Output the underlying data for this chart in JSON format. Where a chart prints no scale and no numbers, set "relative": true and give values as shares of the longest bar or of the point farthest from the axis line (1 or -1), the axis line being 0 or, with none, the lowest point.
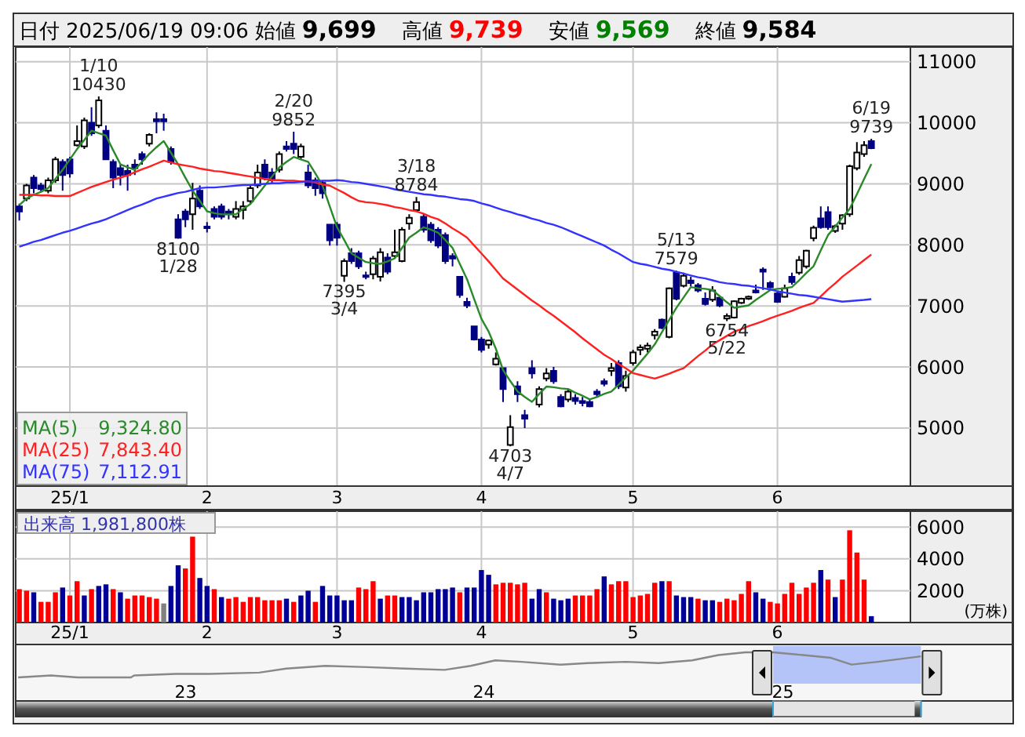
{
  "chart_data": [
    {
      "type": "candlestick",
      "title": "日付 2025/06/19 09:06 始値 9,699 高値 9,739 安値 9,569 終値 9,584",
      "categories": [
        null,
        null,
        null,
        null,
        null,
        null,
        null,
        "25/1",
        null,
        null,
        null,
        null,
        null,
        null,
        null,
        null,
        null,
        null,
        null,
        null,
        null,
        null,
        null,
        null,
        null,
        null,
        "2",
        null,
        null,
        null,
        null,
        null,
        null,
        null,
        null,
        null,
        null,
        null,
        null,
        null,
        null,
        null,
        null,
        null,
        "3",
        null,
        null,
        null,
        null,
        null,
        null,
        null,
        null,
        null,
        null,
        null,
        null,
        null,
        null,
        null,
        null,
        null,
        null,
        null,
        "4",
        null,
        null,
        null,
        null,
        null,
        null,
        null,
        null,
        null,
        null,
        null,
        null,
        null,
        null,
        null,
        null,
        null,
        null,
        null,
        null,
        "5",
        null,
        null,
        null,
        null,
        null,
        null,
        null,
        null,
        null,
        null,
        null,
        null,
        null,
        null,
        null,
        null,
        null,
        null,
        null,
        "6",
        null,
        null,
        null,
        null,
        null,
        null,
        null,
        null,
        null,
        null,
        null,
        null,
        null
      ],
      "ohlc": [
        [
          8631,
          8674,
          8400,
          8546
        ],
        [
          8760,
          9000,
          8717,
          8973
        ],
        [
          9101,
          9144,
          8845,
          8930
        ],
        [
          8973,
          9016,
          8862,
          8913
        ],
        [
          8888,
          9101,
          8845,
          9058
        ],
        [
          9058,
          9443,
          9016,
          9400
        ],
        [
          9358,
          9400,
          8888,
          9144
        ],
        [
          9400,
          9443,
          9101,
          9170
        ],
        [
          9632,
          9956,
          9614,
          9700
        ],
        [
          9614,
          10084,
          9571,
          10041
        ],
        [
          10000,
          10255,
          9785,
          9828
        ],
        [
          9956,
          10430,
          9913,
          10366
        ],
        [
          9870,
          9956,
          9400,
          9400
        ],
        [
          9358,
          9400,
          8930,
          9101
        ],
        [
          9255,
          9315,
          8973,
          9144
        ],
        [
          9212,
          9315,
          8888,
          9144
        ],
        [
          9315,
          9400,
          9144,
          9255
        ],
        [
          9486,
          9529,
          9315,
          9400
        ],
        [
          9657,
          9828,
          9614,
          9802
        ],
        [
          10058,
          10170,
          9828,
          10025
        ],
        [
          10058,
          10148,
          9870,
          10025
        ],
        [
          9571,
          9614,
          9315,
          9358
        ],
        [
          8418,
          8503,
          8100,
          8118
        ],
        [
          8546,
          8589,
          8290,
          8418
        ],
        [
          8503,
          9016,
          8247,
          8760
        ],
        [
          8888,
          8973,
          8589,
          8631
        ],
        [
          8300,
          8375,
          8204,
          8290
        ],
        [
          8589,
          8631,
          8418,
          8460
        ],
        [
          8631,
          8674,
          8418,
          8460
        ],
        [
          8546,
          8589,
          8418,
          8503
        ],
        [
          8460,
          8717,
          8418,
          8589
        ],
        [
          8572,
          8717,
          8418,
          8631
        ],
        [
          8717,
          8973,
          8674,
          8930
        ],
        [
          8973,
          9315,
          8930,
          9187
        ],
        [
          9315,
          9400,
          9058,
          9101
        ],
        [
          9187,
          9255,
          9016,
          9058
        ],
        [
          9230,
          9529,
          9187,
          9486
        ],
        [
          9614,
          9700,
          9529,
          9571
        ],
        [
          9657,
          9852,
          9486,
          9571
        ],
        [
          9443,
          9657,
          9400,
          9614
        ],
        [
          9187,
          9315,
          8930,
          8973
        ],
        [
          9058,
          9101,
          8803,
          8930
        ],
        [
          9016,
          9058,
          8760,
          8845
        ],
        [
          8332,
          8332,
          7990,
          8076
        ],
        [
          8332,
          8375,
          7990,
          8118
        ],
        [
          7495,
          7777,
          7395,
          7734
        ],
        [
          7862,
          7947,
          7690,
          7734
        ],
        [
          7862,
          7904,
          7606,
          7649
        ],
        [
          7500,
          7563,
          7435,
          7480
        ],
        [
          7520,
          7819,
          7435,
          7777
        ],
        [
          7478,
          7947,
          7400,
          7880
        ],
        [
          7793,
          7862,
          7520,
          7563
        ],
        [
          7819,
          8247,
          7793,
          7880
        ],
        [
          7734,
          8290,
          7717,
          8247
        ],
        [
          8350,
          8503,
          8247,
          8443
        ],
        [
          8571,
          8784,
          8546,
          8700
        ],
        [
          8460,
          8503,
          8204,
          8247
        ],
        [
          8332,
          8375,
          8033,
          8076
        ],
        [
          8247,
          8290,
          7947,
          7990
        ],
        [
          8161,
          8204,
          7690,
          7734
        ],
        [
          7819,
          7862,
          7649,
          7776
        ],
        [
          7477,
          7477,
          7135,
          7178
        ],
        [
          7067,
          7135,
          6965,
          7007
        ],
        [
          6666,
          6666,
          6435,
          6452
        ],
        [
          6452,
          6494,
          6238,
          6281
        ],
        [
          6366,
          6452,
          6300,
          6435
        ],
        [
          6042,
          6238,
          6025,
          6135
        ],
        [
          5981,
          5981,
          5426,
          5640
        ],
        [
          4725,
          5213,
          4703,
          5016
        ],
        [
          5683,
          5768,
          5426,
          5555
        ],
        [
          5213,
          5298,
          5000,
          5153
        ],
        [
          5982,
          6110,
          5811,
          5896
        ],
        [
          5384,
          5683,
          5341,
          5640
        ],
        [
          5811,
          5981,
          5768,
          5896
        ],
        [
          5938,
          6000,
          5725,
          5768
        ],
        [
          5511,
          5555,
          5341,
          5358
        ],
        [
          5469,
          5640,
          5426,
          5597
        ],
        [
          5495,
          5555,
          5384,
          5443
        ],
        [
          5444,
          5512,
          5358,
          5410
        ],
        [
          5426,
          5469,
          5341,
          5358
        ],
        [
          5597,
          5640,
          5512,
          5555
        ],
        [
          5768,
          5811,
          5683,
          5725
        ],
        [
          5938,
          6067,
          5854,
          5981
        ],
        [
          6067,
          6110,
          5640,
          5683
        ],
        [
          5665,
          5939,
          5597,
          5853
        ],
        [
          6067,
          6281,
          6024,
          6238
        ],
        [
          6281,
          6366,
          6195,
          6324
        ],
        [
          6300,
          6400,
          6238,
          6350
        ],
        [
          6520,
          6622,
          6452,
          6580
        ],
        [
          6776,
          6793,
          6622,
          6640
        ],
        [
          6494,
          7306,
          6469,
          7289
        ],
        [
          7546,
          7579,
          7093,
          7118
        ],
        [
          7332,
          7546,
          7306,
          7494
        ],
        [
          7417,
          7477,
          7323,
          7375
        ],
        [
          7340,
          7375,
          7220,
          7255
        ],
        [
          7118,
          7221,
          7007,
          7033
        ],
        [
          7101,
          7323,
          7067,
          7255
        ],
        [
          7135,
          7153,
          6982,
          7007
        ],
        [
          6793,
          6879,
          6754,
          6835
        ],
        [
          6810,
          7093,
          6793,
          7076
        ],
        [
          7050,
          7135,
          7033,
          7118
        ],
        [
          7118,
          7170,
          7100,
          7150
        ],
        [
          7255,
          7350,
          7204,
          7220
        ],
        [
          7597,
          7631,
          7264,
          7562
        ],
        [
          7375,
          7409,
          7289,
          7306
        ],
        [
          7204,
          7238,
          7050,
          7067
        ],
        [
          7152,
          7350,
          7135,
          7289
        ],
        [
          7477,
          7546,
          7349,
          7392
        ],
        [
          7546,
          7819,
          7511,
          7751
        ],
        [
          7648,
          7922,
          7614,
          7905
        ],
        [
          8110,
          8315,
          8059,
          8281
        ],
        [
          8435,
          8631,
          8264,
          8290
        ],
        [
          8537,
          8631,
          8247,
          8290
        ],
        [
          8230,
          8332,
          8196,
          8307
        ],
        [
          8349,
          8503,
          8247,
          8486
        ],
        [
          8503,
          9315,
          8460,
          9290
        ],
        [
          9255,
          9682,
          9221,
          9512
        ],
        [
          9486,
          9700,
          9443,
          9631
        ],
        [
          9699,
          9739,
          9569,
          9584
        ]
      ],
      "colors": [
        "#000080",
        "#ffffff",
        "#000080",
        "#000080",
        "#ffffff",
        "#ffffff",
        "#000080",
        "#000080",
        "#ffffff",
        "#ffffff",
        "#000080",
        "#ffffff",
        "#000080",
        "#000080",
        "#000080",
        "#000080",
        "#000080",
        "#000080",
        "#ffffff",
        "#000080",
        "#000080",
        "#000080",
        "#000080",
        "#000080",
        "#ffffff",
        "#000080",
        "#000080",
        "#000080",
        "#000080",
        "#000080",
        "#ffffff",
        "#ffffff",
        "#ffffff",
        "#ffffff",
        "#000080",
        "#000080",
        "#ffffff",
        "#000080",
        "#000080",
        "#ffffff",
        "#000080",
        "#000080",
        "#000080",
        "#000080",
        "#000080",
        "#ffffff",
        "#000080",
        "#000080",
        "#000080",
        "#ffffff",
        "#ffffff",
        "#000080",
        "#ffffff",
        "#ffffff",
        "#ffffff",
        "#ffffff",
        "#000080",
        "#000080",
        "#000080",
        "#000080",
        "#000080",
        "#000080",
        "#000080",
        "#000080",
        "#000080",
        "#ffffff",
        "#ffffff",
        "#000080",
        "#ffffff",
        "#000080",
        "#000080",
        "#000080",
        "#ffffff",
        "#ffffff",
        "#000080",
        "#000080",
        "#ffffff",
        "#000080",
        "#000080",
        "#000080",
        "#000080",
        "#000080",
        "#ffffff",
        "#000080",
        "#ffffff",
        "#ffffff",
        "#ffffff",
        "#ffffff",
        "#ffffff",
        "#000080",
        "#ffffff",
        "#000080",
        "#ffffff",
        "#000080",
        "#000080",
        "#000080",
        "#ffffff",
        "#000080",
        "#ffffff",
        "#ffffff",
        "#ffffff",
        "#ffffff",
        "#000080",
        "#000080",
        "#000080",
        "#000080",
        "#ffffff",
        "#000080",
        "#ffffff",
        "#ffffff",
        "#ffffff",
        "#000080",
        "#000080",
        "#ffffff",
        "#ffffff",
        "#ffffff",
        "#ffffff",
        "#ffffff",
        "#000080"
      ],
      "value_labels": [
        null,
        null,
        null,
        null,
        null,
        null,
        null,
        null,
        null,
        null,
        null,
        "1/10\n10430",
        null,
        null,
        null,
        null,
        null,
        null,
        null,
        null,
        null,
        null,
        "8100\n1/28",
        null,
        null,
        null,
        null,
        null,
        null,
        null,
        null,
        null,
        null,
        null,
        null,
        null,
        null,
        null,
        "2/20\n9852",
        null,
        null,
        null,
        null,
        null,
        null,
        "7395\n3/4",
        null,
        null,
        null,
        null,
        null,
        null,
        null,
        null,
        null,
        "3/18\n8784",
        null,
        null,
        null,
        null,
        null,
        null,
        null,
        null,
        null,
        null,
        null,
        null,
        "4703\n4/7",
        null,
        null,
        null,
        null,
        null,
        null,
        null,
        null,
        null,
        null,
        null,
        null,
        null,
        null,
        null,
        null,
        null,
        null,
        null,
        null,
        null,
        null,
        "5/13\n7579",
        null,
        null,
        null,
        null,
        null,
        null,
        "6754\n5/22",
        null,
        null,
        null,
        null,
        null,
        null,
        null,
        null,
        null,
        null,
        null,
        null,
        null,
        null,
        null,
        null,
        null,
        null,
        null,
        "6/19\n9739"
      ],
      "series": [
        {
          "type": "line",
          "name": "MA(5)",
          "color": "#2a8a2a",
          "values": [
            8650,
            8760,
            8820,
            8870,
            8930,
            9080,
            9230,
            9400,
            9570,
            9720,
            9870,
            9830,
            9790,
            9550,
            9320,
            9270,
            9230,
            9360,
            9490,
            9600,
            9700,
            9510,
            9320,
            9100,
            8890,
            8720,
            8550,
            8520,
            8500,
            8500,
            8500,
            8590,
            8670,
            8820,
            8970,
            9120,
            9270,
            9360,
            9440,
            9400,
            9360,
            9170,
            8970,
            8630,
            8290,
            8080,
            7860,
            7790,
            7720,
            7700,
            7690,
            7730,
            7780,
            7950,
            8120,
            8200,
            8290,
            8250,
            8200,
            8080,
            7950,
            7690,
            7440,
            7110,
            6790,
            6580,
            6300,
            5950,
            5770,
            5600,
            5510,
            5430,
            5560,
            5680,
            5670,
            5650,
            5640,
            5580,
            5530,
            5470,
            5510,
            5560,
            5600,
            5710,
            5830,
            5940,
            6080,
            6220,
            6370,
            6570,
            6770,
            6970,
            7140,
            7310,
            7290,
            7280,
            7260,
            7160,
            7060,
            6970,
            6990,
            7010,
            7100,
            7180,
            7260,
            7280,
            7290,
            7310,
            7420,
            7540,
            7650,
            7910,
            8160,
            8300,
            8450,
            8590,
            8830,
            9080,
            9325
          ]
        },
        {
          "type": "line",
          "name": "MA(25)",
          "color": "#ff2020",
          "values": [
            8820,
            8820,
            8820,
            8810,
            8810,
            8800,
            8800,
            8800,
            8850,
            8900,
            8950,
            8990,
            9030,
            9070,
            9100,
            9140,
            9190,
            9240,
            9280,
            9330,
            9380,
            9350,
            9320,
            9300,
            9280,
            9250,
            9230,
            9210,
            9200,
            9180,
            9160,
            9140,
            9120,
            9100,
            9080,
            9060,
            9060,
            9050,
            9050,
            9040,
            9040,
            9020,
            8990,
            8970,
            8910,
            8850,
            8780,
            8720,
            8700,
            8690,
            8670,
            8650,
            8620,
            8600,
            8570,
            8550,
            8510,
            8460,
            8420,
            8350,
            8270,
            8200,
            8120,
            7990,
            7860,
            7730,
            7590,
            7450,
            7360,
            7270,
            7180,
            7090,
            7010,
            6920,
            6840,
            6750,
            6660,
            6570,
            6470,
            6380,
            6290,
            6200,
            6130,
            6050,
            5980,
            5900,
            5870,
            5840,
            5810,
            5850,
            5890,
            5940,
            5980,
            6080,
            6180,
            6270,
            6370,
            6440,
            6510,
            6580,
            6620,
            6670,
            6710,
            6750,
            6800,
            6840,
            6880,
            6920,
            6970,
            7010,
            7050,
            7160,
            7270,
            7370,
            7480,
            7570,
            7660,
            7750,
            7843
          ]
        },
        {
          "type": "line",
          "name": "MA(75)",
          "color": "#3333ff",
          "values": [
            7970,
            8010,
            8050,
            8080,
            8120,
            8160,
            8200,
            8230,
            8270,
            8310,
            8350,
            8380,
            8420,
            8470,
            8520,
            8570,
            8620,
            8660,
            8710,
            8760,
            8790,
            8820,
            8850,
            8870,
            8900,
            8930,
            8940,
            8940,
            8950,
            8960,
            8970,
            8980,
            8980,
            8990,
            9000,
            9010,
            9010,
            9020,
            9020,
            9030,
            9040,
            9040,
            9050,
            9050,
            9060,
            9050,
            9030,
            9020,
            9000,
            8980,
            8960,
            8940,
            8910,
            8890,
            8870,
            8850,
            8830,
            8820,
            8800,
            8790,
            8770,
            8750,
            8740,
            8720,
            8680,
            8650,
            8610,
            8570,
            8540,
            8500,
            8470,
            8430,
            8400,
            8360,
            8330,
            8290,
            8240,
            8190,
            8140,
            8090,
            8040,
            7990,
            7920,
            7860,
            7790,
            7720,
            7690,
            7670,
            7640,
            7610,
            7590,
            7560,
            7530,
            7500,
            7470,
            7450,
            7420,
            7390,
            7370,
            7360,
            7340,
            7330,
            7310,
            7290,
            7270,
            7240,
            7220,
            7200,
            7180,
            7170,
            7150,
            7130,
            7110,
            7090,
            7070,
            7080,
            7090,
            7100,
            7113
          ]
        }
      ],
      "annotations": [
        "9,324.80",
        "7,843.40",
        "7,112.91"
      ],
      "ylim": [
        4050,
        11240
      ],
      "yticks": [
        5000,
        6000,
        7000,
        8000,
        9000,
        10000,
        11000
      ],
      "grid": true,
      "legend": "bottom left"
    },
    {
      "type": "bar",
      "title": "出来高 1,981,800株",
      "ylabel": "(万株)",
      "categories": [
        null,
        null,
        null,
        null,
        null,
        null,
        null,
        "25/1",
        null,
        null,
        null,
        null,
        null,
        null,
        null,
        null,
        null,
        null,
        null,
        null,
        null,
        null,
        null,
        null,
        null,
        null,
        "2",
        null,
        null,
        null,
        null,
        null,
        null,
        null,
        null,
        null,
        null,
        null,
        null,
        null,
        null,
        null,
        null,
        null,
        "3",
        null,
        null,
        null,
        null,
        null,
        null,
        null,
        null,
        null,
        null,
        null,
        null,
        null,
        null,
        null,
        null,
        null,
        null,
        null,
        "4",
        null,
        null,
        null,
        null,
        null,
        null,
        null,
        null,
        null,
        null,
        null,
        null,
        null,
        null,
        null,
        null,
        null,
        null,
        null,
        null,
        "5",
        null,
        null,
        null,
        null,
        null,
        null,
        null,
        null,
        null,
        null,
        null,
        null,
        null,
        null,
        null,
        null,
        null,
        null,
        null,
        "6",
        null,
        null,
        null,
        null,
        null,
        null,
        null,
        null,
        null,
        null,
        null,
        null,
        null
      ],
      "values": [
        2100,
        2000,
        1900,
        1300,
        1300,
        1900,
        2200,
        1700,
        2600,
        1700,
        2100,
        2300,
        2400,
        2100,
        1900,
        1500,
        1700,
        1700,
        1600,
        1500,
        1200,
        2300,
        3600,
        3400,
        5400,
        2800,
        2300,
        2100,
        1600,
        1500,
        1600,
        1300,
        1600,
        1600,
        1400,
        1400,
        1400,
        1500,
        1300,
        1700,
        2000,
        1300,
        2300,
        1700,
        1700,
        1400,
        1400,
        2200,
        2100,
        2600,
        1500,
        1700,
        1700,
        1600,
        1600,
        1400,
        1900,
        1900,
        2100,
        2100,
        2200,
        1900,
        2200,
        2200,
        3300,
        3000,
        2400,
        2500,
        2500,
        2400,
        2500,
        1500,
        2100,
        1900,
        1500,
        1400,
        1500,
        1700,
        1700,
        1700,
        2100,
        2900,
        2400,
        2600,
        2600,
        1600,
        1700,
        1800,
        2500,
        2600,
        2600,
        1700,
        1600,
        1600,
        1500,
        1400,
        1400,
        1300,
        1500,
        1400,
        1800,
        2600,
        1900,
        1500,
        1300,
        1200,
        1800,
        2500,
        1800,
        2200,
        2500,
        3300,
        2700,
        1600,
        2700,
        5800,
        4400,
        2700,
        400
      ],
      "colors": [
        "#ff0000",
        "#ff0000",
        "#000099",
        "#ff0000",
        "#ff0000",
        "#ff0000",
        "#000099",
        "#ff0000",
        "#ff0000",
        "#000099",
        "#ff0000",
        "#000099",
        "#000099",
        "#ff0000",
        "#000099",
        "#ff0000",
        "#ff0000",
        "#ff0000",
        "#ff0000",
        "#ff0000",
        "#808080",
        "#000099",
        "#000099",
        "#ff0000",
        "#ff0000",
        "#000099",
        "#000099",
        "#ff0000",
        "#000099",
        "#ff0000",
        "#ff0000",
        "#ff0000",
        "#ff0000",
        "#ff0000",
        "#ff0000",
        "#ff0000",
        "#ff0000",
        "#000099",
        "#ff0000",
        "#000099",
        "#000099",
        "#ff0000",
        "#000099",
        "#000099",
        "#000099",
        "#000099",
        "#000099",
        "#ff0000",
        "#ff0000",
        "#ff0000",
        "#000099",
        "#ff0000",
        "#ff0000",
        "#000099",
        "#000099",
        "#000099",
        "#000099",
        "#000099",
        "#000099",
        "#000099",
        "#000099",
        "#ff0000",
        "#000099",
        "#000099",
        "#000099",
        "#000099",
        "#ff0000",
        "#ff0000",
        "#ff0000",
        "#ff0000",
        "#ff0000",
        "#000099",
        "#000099",
        "#ff0000",
        "#000099",
        "#000099",
        "#000099",
        "#ff0000",
        "#ff0000",
        "#ff0000",
        "#ff0000",
        "#000099",
        "#ff0000",
        "#ff0000",
        "#ff0000",
        "#ff0000",
        "#ff0000",
        "#ff0000",
        "#ff0000",
        "#000099",
        "#ff0000",
        "#000099",
        "#000099",
        "#000099",
        "#ff0000",
        "#000099",
        "#000099",
        "#ff0000",
        "#ff0000",
        "#ff0000",
        "#ff0000",
        "#ff0000",
        "#000099",
        "#000099",
        "#ff0000",
        "#ff0000",
        "#ff0000",
        "#ff0000",
        "#ff0000",
        "#ff0000",
        "#ff0000",
        "#000099",
        "#ff0000",
        "#000099",
        "#ff0000",
        "#ff0000",
        "#ff0000",
        "#ff0000",
        "#000099"
      ],
      "ylim": [
        0,
        7000
      ],
      "yticks": [
        2000,
        4000,
        6000
      ],
      "grid": true
    },
    {
      "type": "line",
      "relative": true,
      "x": [
        "2022-06-10",
        "2022-07-20",
        "2022-08-22",
        "2022-10-26",
        "2022-10-30",
        "2022-12-20",
        "2023-01-30",
        "2023-04-01",
        "2023-05-04",
        "2023-06-21",
        "2023-08-11",
        "2023-09-27",
        "2023-11-14",
        "2023-12-16",
        "2024-01-15",
        "2024-02-16",
        "2024-04-04",
        "2024-05-07",
        "2024-06-23",
        "2024-08-02",
        "2024-09-12",
        "2024-10-14",
        "2024-11-16",
        "2024-12-20",
        "2025-01-26",
        "2025-03-01",
        "2025-03-26",
        "2025-04-27",
        "2025-06-19"
      ],
      "values": [
        0,
        0.08,
        0,
        0,
        0.08,
        0.14,
        0.14,
        0.19,
        0.35,
        0.46,
        0.41,
        0.35,
        0.3,
        0.46,
        0.68,
        0.62,
        0.51,
        0.57,
        0.62,
        0.57,
        0.68,
        0.89,
        1,
        1,
        0.89,
        0.78,
        0.51,
        0.62,
        0.84
      ],
      "color": "#888888",
      "bands": [
        {
          "axis": "x",
          "from": "2024-12-20",
          "to": "2025-06-19",
          "color": "#b4c4f8"
        }
      ],
      "xlim": [
        "2022-06-07",
        "2025-10-09"
      ],
      "xticks": [
        {
          "value": "2023-01-01",
          "label": "23"
        },
        {
          "value": "2024-01-01",
          "label": "24"
        },
        {
          "value": "2025-01-01",
          "label": "25"
        }
      ],
      "tick_labels": "x"
    }
  ]
}
